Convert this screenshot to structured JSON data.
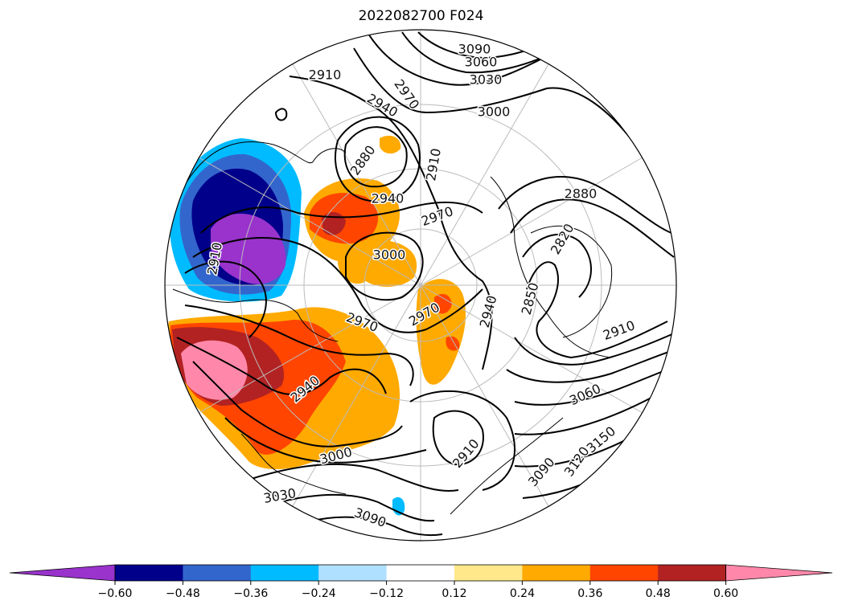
{
  "title": "2022082700 F024",
  "map": {
    "projection": "north-polar-stereographic",
    "contour_field_label_values": [
      "3090",
      "3060",
      "3030",
      "3000",
      "2970",
      "2940",
      "2910",
      "2880",
      "2850",
      "3120",
      "3150"
    ],
    "contour_labels": [
      {
        "text": "3090"
      },
      {
        "text": "3060"
      },
      {
        "text": "3030"
      },
      {
        "text": "3000"
      },
      {
        "text": "2910"
      },
      {
        "text": "2970"
      },
      {
        "text": "2940"
      },
      {
        "text": "2880"
      },
      {
        "text": "2940"
      },
      {
        "text": "2910"
      },
      {
        "text": "2970"
      },
      {
        "text": "3000"
      },
      {
        "text": "2880"
      },
      {
        "text": "2820"
      },
      {
        "text": "2850"
      },
      {
        "text": "2940"
      },
      {
        "text": "2970"
      },
      {
        "text": "2970"
      },
      {
        "text": "2940"
      },
      {
        "text": "2910"
      },
      {
        "text": "3060"
      },
      {
        "text": "3000"
      },
      {
        "text": "3030"
      },
      {
        "text": "3090"
      },
      {
        "text": "2910"
      },
      {
        "text": "3090"
      },
      {
        "text": "3120"
      },
      {
        "text": "3150"
      },
      {
        "text": "2910"
      }
    ]
  },
  "colorbar": {
    "colors": [
      "#9933cc",
      "#00008b",
      "#3366cc",
      "#00bbff",
      "#b0e0ff",
      "#ffffff",
      "#ffe88a",
      "#ffaa00",
      "#ff4500",
      "#b22222",
      "#ff88aa"
    ],
    "ticks": [
      "−0.60",
      "−0.48",
      "−0.36",
      "−0.24",
      "−0.12",
      "0.12",
      "0.24",
      "0.36",
      "0.48",
      "0.60"
    ],
    "extend": "both"
  }
}
